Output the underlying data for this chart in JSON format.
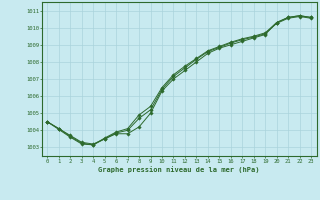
{
  "title": "Graphe pression niveau de la mer (hPa)",
  "background_color": "#c8eaf0",
  "grid_color": "#aad4dc",
  "line_color": "#2d6a2d",
  "x_ticks": [
    0,
    1,
    2,
    3,
    4,
    5,
    6,
    7,
    8,
    9,
    10,
    11,
    12,
    13,
    14,
    15,
    16,
    17,
    18,
    19,
    20,
    21,
    22,
    23
  ],
  "ylim": [
    1002.5,
    1011.5
  ],
  "xlim": [
    -0.5,
    23.5
  ],
  "yticks": [
    1003,
    1004,
    1005,
    1006,
    1007,
    1008,
    1009,
    1010,
    1011
  ],
  "series": [
    [
      1004.5,
      1004.1,
      1003.7,
      1003.3,
      1003.2,
      1003.5,
      1003.8,
      1003.8,
      1004.2,
      1005.0,
      1006.3,
      1007.0,
      1007.5,
      1008.0,
      1008.5,
      1008.8,
      1009.0,
      1009.2,
      1009.4,
      1009.6,
      1010.3,
      1010.6,
      1010.7,
      1010.6
    ],
    [
      1004.5,
      1004.1,
      1003.65,
      1003.25,
      1003.15,
      1003.5,
      1003.85,
      1004.0,
      1004.7,
      1005.2,
      1006.4,
      1007.15,
      1007.65,
      1008.15,
      1008.6,
      1008.85,
      1009.1,
      1009.3,
      1009.45,
      1009.65,
      1010.25,
      1010.55,
      1010.65,
      1010.55
    ],
    [
      1004.5,
      1004.05,
      1003.6,
      1003.2,
      1003.15,
      1003.55,
      1003.9,
      1004.1,
      1004.9,
      1005.4,
      1006.5,
      1007.25,
      1007.75,
      1008.2,
      1008.65,
      1008.9,
      1009.15,
      1009.35,
      1009.5,
      1009.7,
      1010.3,
      1010.6,
      1010.7,
      1010.6
    ]
  ]
}
